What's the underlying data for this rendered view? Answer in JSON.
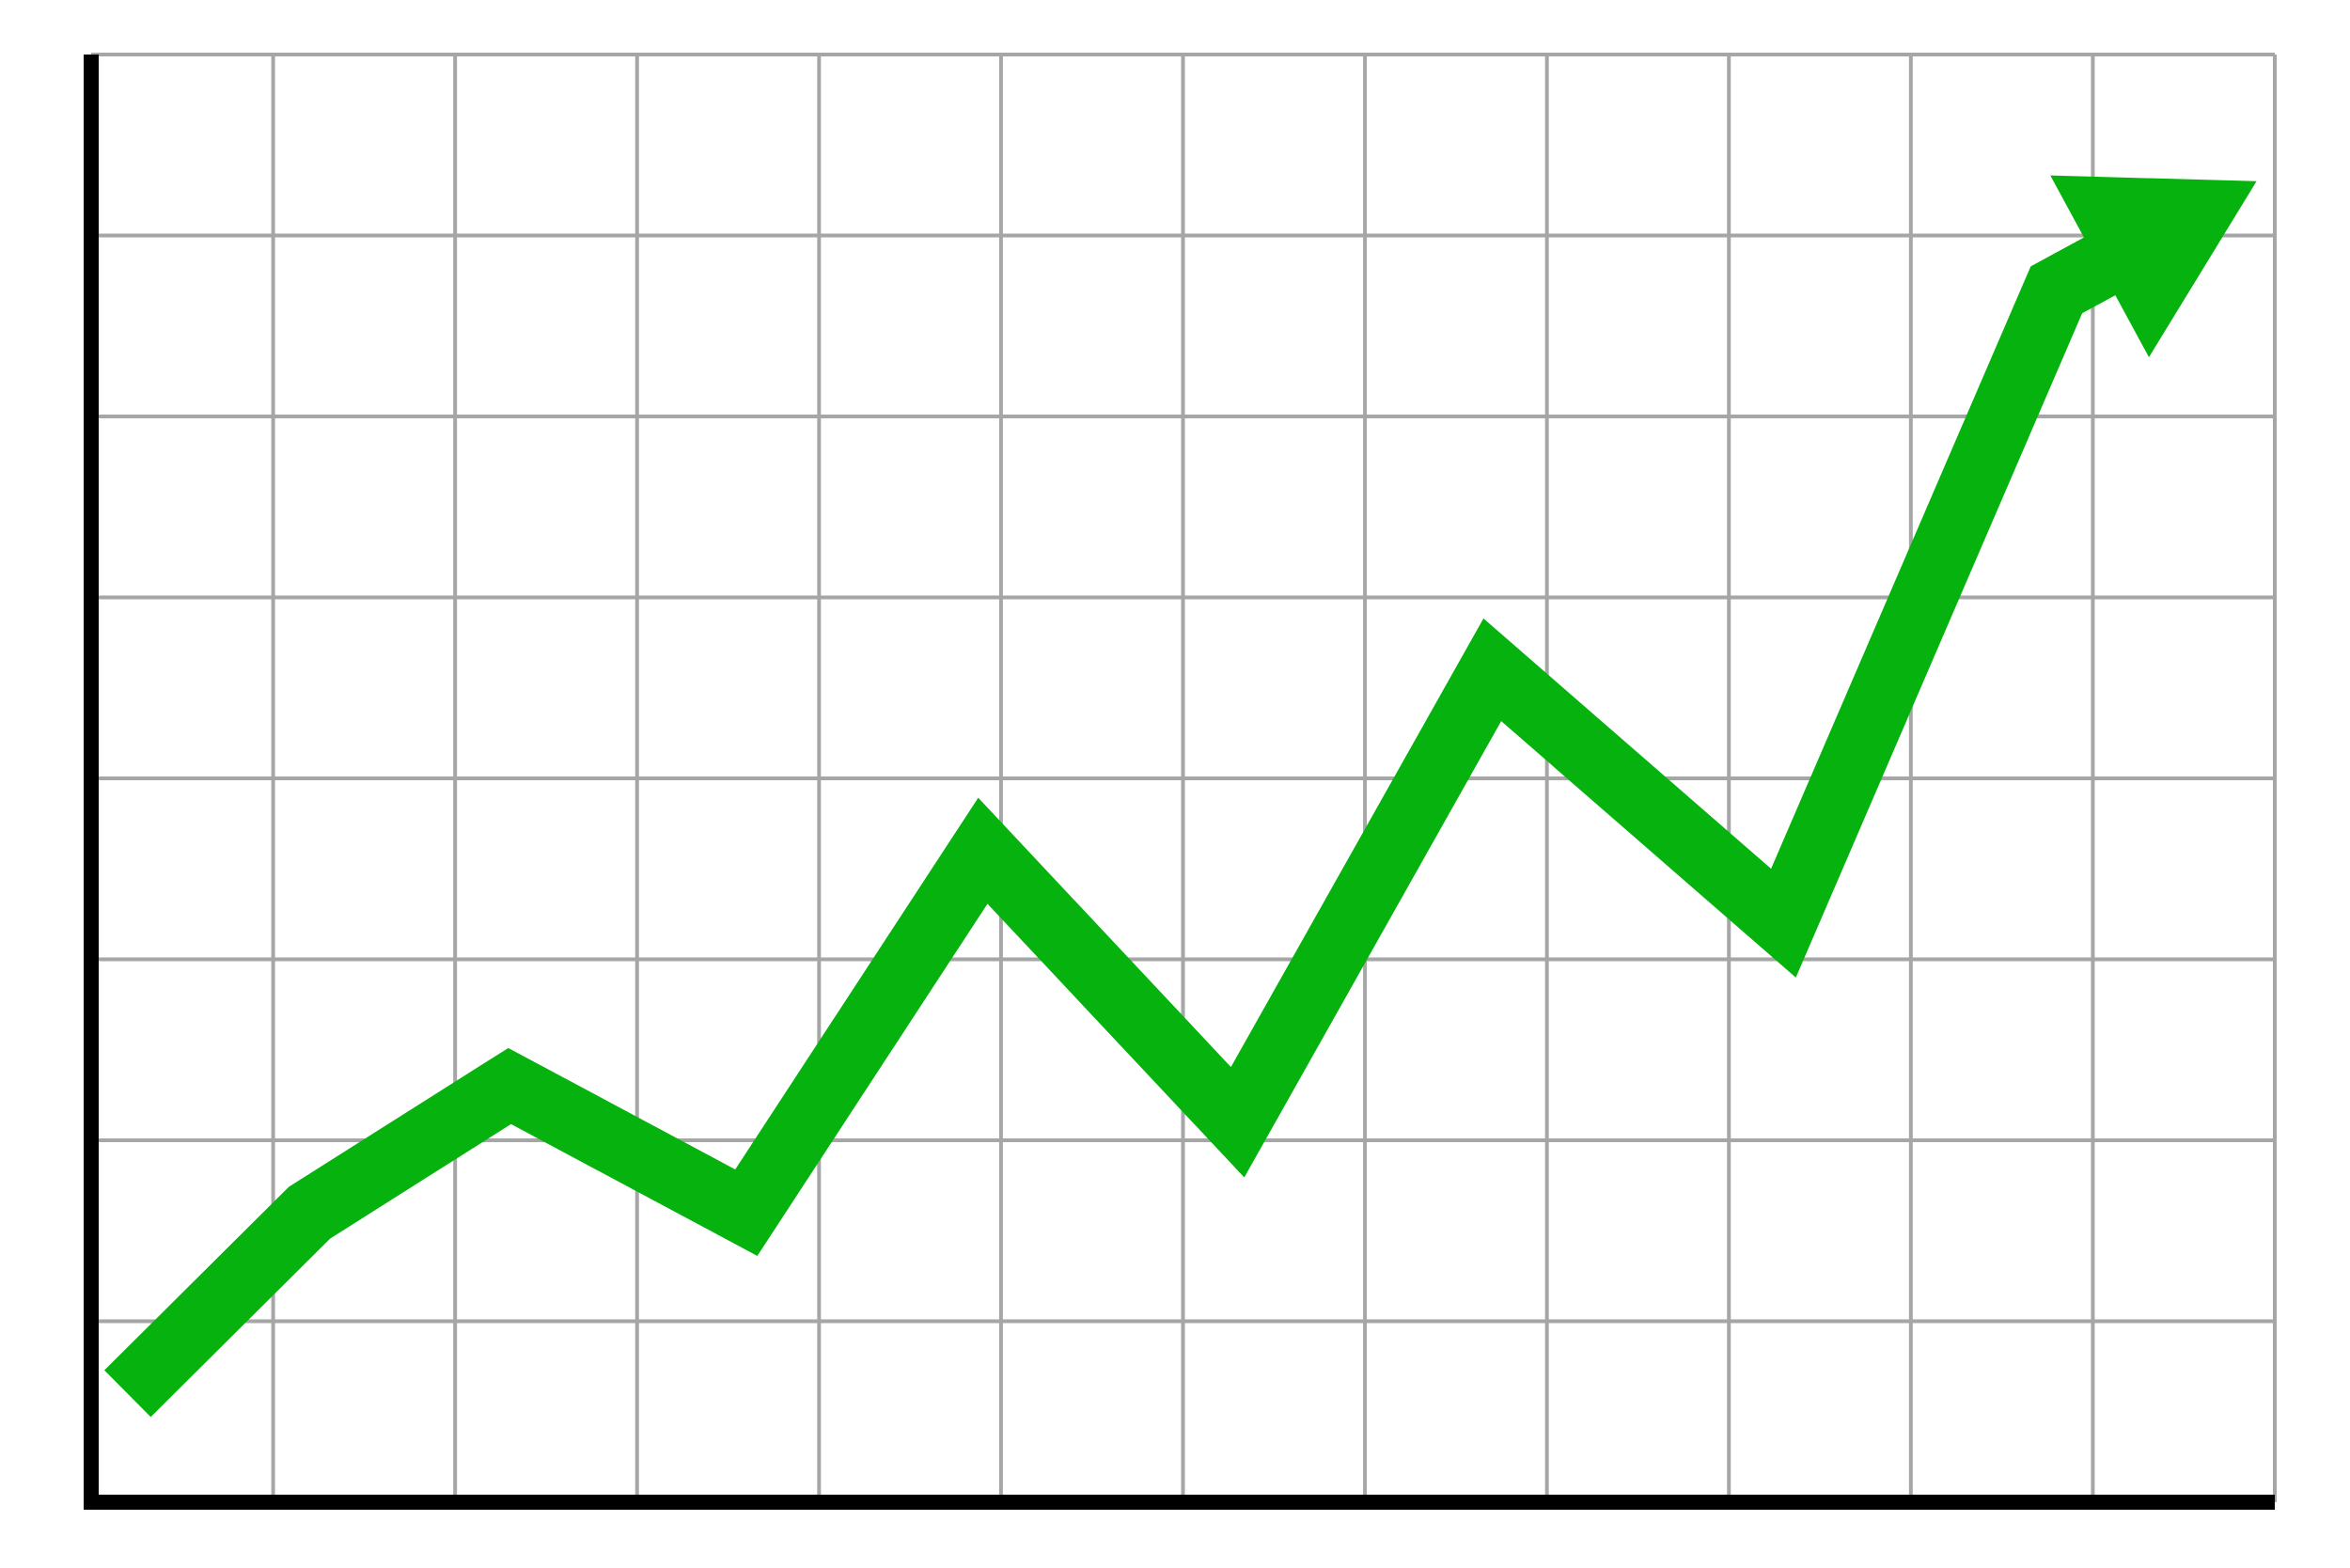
{
  "chart_data": {
    "type": "line",
    "title": "",
    "xlabel": "",
    "ylabel": "",
    "x": [
      0.2,
      1.2,
      2.3,
      3.6,
      4.9,
      6.3,
      7.7,
      9.3,
      10.8,
      11.9
    ],
    "series": [
      {
        "values": [
          0.6,
          1.6,
          2.3,
          1.6,
          3.6,
          2.1,
          4.6,
          3.2,
          6.7,
          7.3
        ],
        "color": "#05B20E"
      }
    ],
    "xlim": [
      0,
      12
    ],
    "ylim": [
      0,
      8
    ],
    "x_gridlines": 12,
    "y_gridlines": 8,
    "grid": true,
    "grid_color": "#A6A6A6",
    "axis_color": "#000000",
    "end_marker": "arrow-icon",
    "legend": "none"
  }
}
